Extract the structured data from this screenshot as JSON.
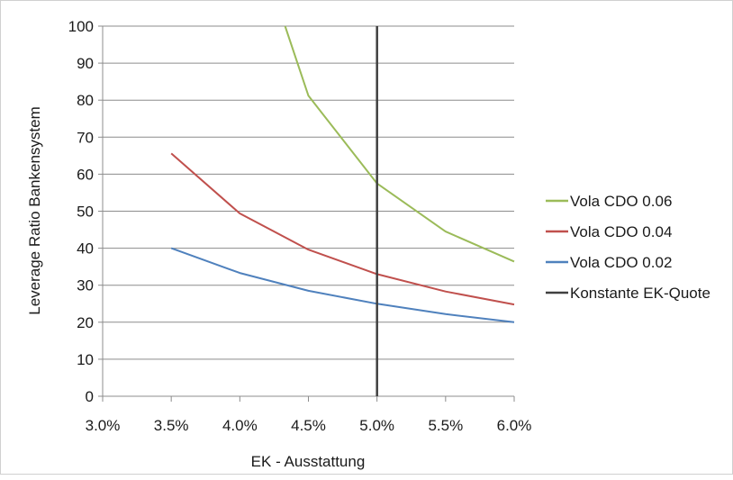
{
  "chart_data": {
    "type": "line",
    "title": "",
    "xlabel": "EK - Ausstattung",
    "ylabel": "Leverage Ratio Bankensystem",
    "x_ticks": [
      "3.0%",
      "3.5%",
      "4.0%",
      "4.5%",
      "5.0%",
      "5.5%",
      "6.0%"
    ],
    "y_ticks": [
      "0",
      "10",
      "20",
      "30",
      "40",
      "50",
      "60",
      "70",
      "80",
      "90",
      "100"
    ],
    "xlim": [
      3.0,
      6.0
    ],
    "ylim": [
      0,
      100
    ],
    "grid": "horizontal",
    "legend_position": "right",
    "series": [
      {
        "name": "Vola CDO 0.06",
        "color": "#9bbb59",
        "x": [
          4.33,
          4.5,
          5.0,
          5.5,
          6.0
        ],
        "values": [
          100,
          81.2,
          57.5,
          44.5,
          36.4
        ]
      },
      {
        "name": "Vola CDO 0.04",
        "color": "#c0504d",
        "x": [
          3.5,
          4.0,
          4.5,
          5.0,
          5.5,
          6.0
        ],
        "values": [
          65.6,
          49.4,
          39.6,
          33.0,
          28.3,
          24.8
        ]
      },
      {
        "name": "Vola CDO 0.02",
        "color": "#4f81bd",
        "x": [
          3.5,
          4.0,
          4.5,
          5.0,
          5.5,
          6.0
        ],
        "values": [
          40.0,
          33.3,
          28.5,
          25.0,
          22.2,
          20.0
        ]
      },
      {
        "name": "Konstante EK-Quote",
        "color": "#404040",
        "x": [
          5.0,
          5.0
        ],
        "values": [
          0,
          100
        ]
      }
    ]
  }
}
